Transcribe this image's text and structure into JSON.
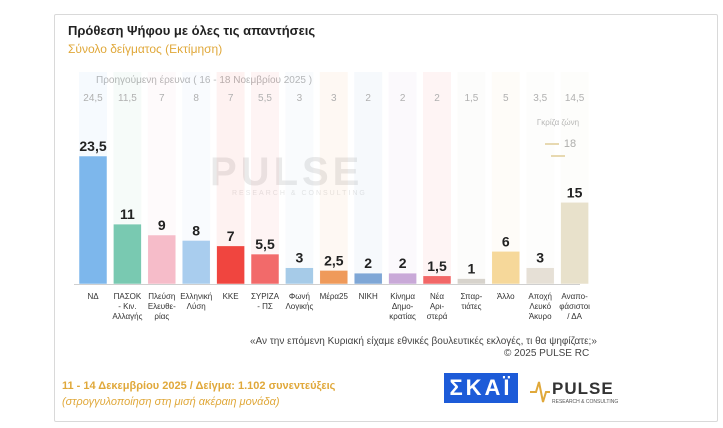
{
  "header": {
    "title": "Πρόθεση Ψήφου με όλες τις απαντήσεις",
    "subtitle": "Σύνολο δείγματος   (Εκτίμηση)"
  },
  "previous_label": "Προηγούμενη έρευνα  ( 16 - 18 Νοεμβρίου 2025 )",
  "gray_zone": {
    "label": "Γκρίζα ζώνη",
    "value": "18"
  },
  "watermark": {
    "text": "PULSE",
    "sub": "RESEARCH & CONSULTING"
  },
  "chart_data": {
    "type": "bar",
    "categories": [
      "ΝΔ",
      "ΠΑΣΟΚ - Κιν. Αλλαγής",
      "Πλεύση Ελευθε-ρίας",
      "Ελληνική Λύση",
      "ΚΚΕ",
      "ΣΥΡΙΖΑ - ΠΣ",
      "Φωνή Λογικής",
      "Μέρα25",
      "ΝΙΚΗ",
      "Κίνημα Δημο-κρατίας",
      "Νέα Αρι-στερά",
      "Σπαρ-τιάτες",
      "Άλλο",
      "Αποχή Λευκό Άκυρο",
      "Αναπο-φάσιστοι / ΔΑ"
    ],
    "category_lines": [
      [
        "ΝΔ"
      ],
      [
        "ΠΑΣΟΚ",
        "- Κιν.",
        "Αλλαγής"
      ],
      [
        "Πλεύση",
        "Ελευθε-",
        "ρίας"
      ],
      [
        "Ελληνική",
        "Λύση"
      ],
      [
        "ΚΚΕ"
      ],
      [
        "ΣΥΡΙΖΑ",
        "- ΠΣ"
      ],
      [
        "Φωνή",
        "Λογικής"
      ],
      [
        "Μέρα25"
      ],
      [
        "ΝΙΚΗ"
      ],
      [
        "Κίνημα",
        "Δημο-",
        "κρατίας"
      ],
      [
        "Νέα",
        "Αρι-",
        "στερά"
      ],
      [
        "Σπαρ-",
        "τιάτες"
      ],
      [
        "Άλλο"
      ],
      [
        "Αποχή",
        "Λευκό",
        "Άκυρο"
      ],
      [
        "Αναπο-",
        "φάσιστοι",
        "/ ΔΑ"
      ]
    ],
    "values": [
      23.5,
      11,
      9,
      8,
      7,
      5.5,
      3,
      2.5,
      2,
      2,
      1.5,
      1,
      6,
      3,
      15
    ],
    "value_labels": [
      "23,5",
      "11",
      "9",
      "8",
      "7",
      "5,5",
      "3",
      "2,5",
      "2",
      "2",
      "1,5",
      "1",
      "6",
      "3",
      "15"
    ],
    "previous_values": [
      "24,5",
      "11,5",
      "7",
      "8",
      "7",
      "5,5",
      "3",
      "3",
      "2",
      "2",
      "2",
      "1,5",
      "5",
      "3,5",
      "14,5"
    ],
    "colors": [
      "#7db7ec",
      "#79c9b1",
      "#f6bcc9",
      "#a9cdee",
      "#f0453f",
      "#f26a6a",
      "#a6cbe8",
      "#ef9a5a",
      "#7fa7d6",
      "#c9a9d8",
      "#f26767",
      "#d7d3cc",
      "#f6d89a",
      "#e6e0d6",
      "#e8e1cb"
    ],
    "ylim": [
      0,
      25
    ]
  },
  "question": "«Αν την επόμενη Κυριακή είχαμε εθνικές βουλευτικές εκλογές, τι θα ψηφίζατε;»",
  "copyright": "© 2025 PULSE RC",
  "footer": {
    "date_line": "11 - 14 Δεκεμβρίου 2025  /  Δείγμα:  1.102 συνεντεύξεις",
    "rounding_note": "(στρογγυλοποίηση στη μισή ακέραιη μονάδα)"
  },
  "logos": {
    "skai": "ΣΚΑΪ",
    "pulse": "PULSE",
    "pulse_sub": "RESEARCH & CONSULTING"
  }
}
